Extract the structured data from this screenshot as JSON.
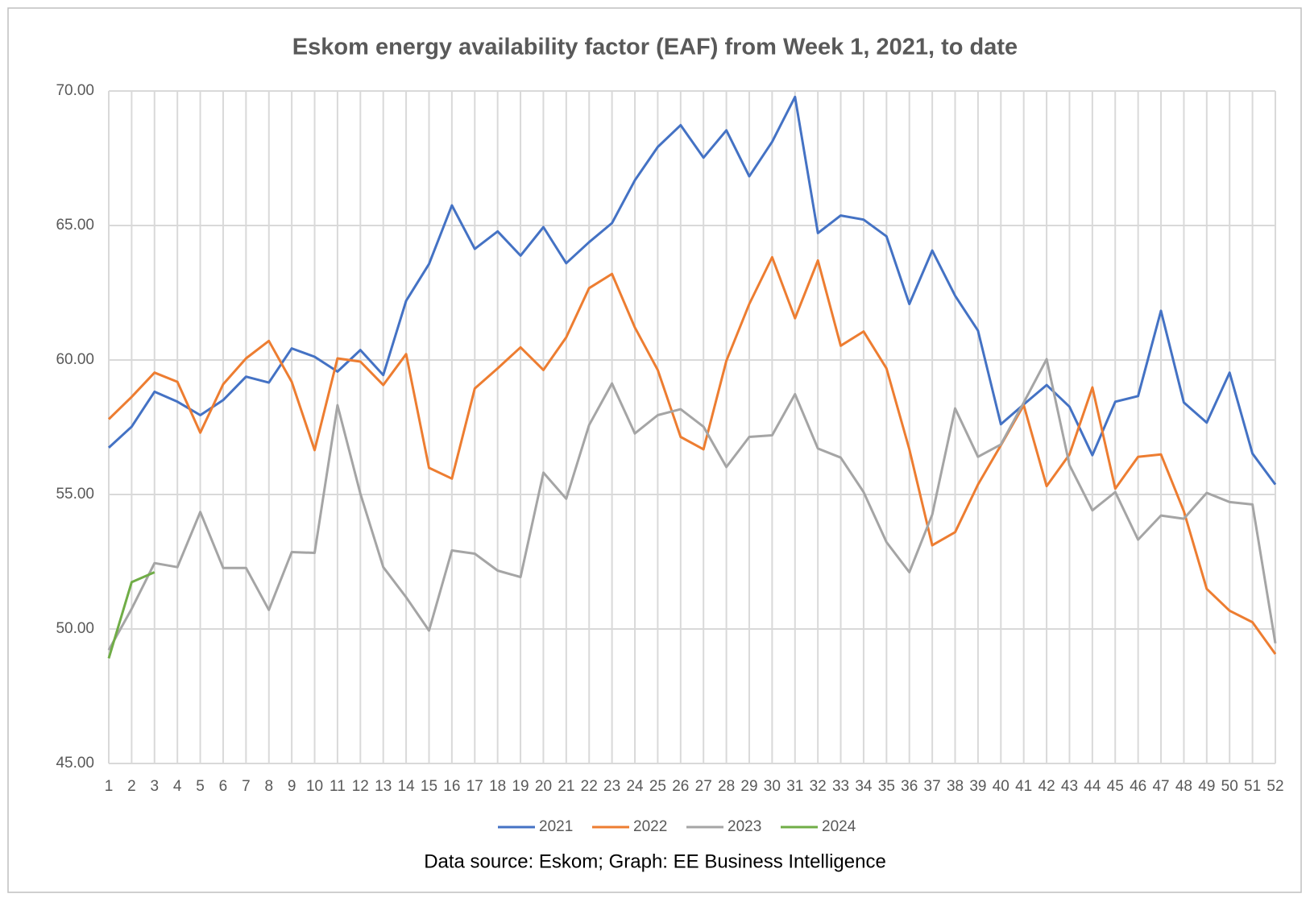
{
  "chart_data": {
    "type": "line",
    "title": "Eskom energy availability factor (EAF) from Week 1, 2021, to date",
    "annotation": "Data source: Eskom; Graph: EE Business Intelligence",
    "categories": [
      1,
      2,
      3,
      4,
      5,
      6,
      7,
      8,
      9,
      10,
      11,
      12,
      13,
      14,
      15,
      16,
      17,
      18,
      19,
      20,
      21,
      22,
      23,
      24,
      25,
      26,
      27,
      28,
      29,
      30,
      31,
      32,
      33,
      34,
      35,
      36,
      37,
      38,
      39,
      40,
      41,
      42,
      43,
      44,
      45,
      46,
      47,
      48,
      49,
      50,
      51,
      52
    ],
    "series": [
      {
        "name": "2021",
        "color": "#4472c4",
        "values": [
          56.74,
          57.52,
          58.82,
          58.45,
          57.95,
          58.51,
          59.38,
          59.16,
          60.43,
          60.12,
          59.57,
          60.37,
          59.44,
          62.2,
          63.57,
          65.75,
          64.13,
          64.78,
          63.88,
          64.94,
          63.6,
          64.38,
          65.09,
          66.68,
          67.92,
          68.73,
          67.52,
          68.54,
          66.83,
          68.11,
          69.78,
          64.72,
          65.37,
          65.22,
          64.6,
          62.08,
          64.07,
          62.39,
          61.09,
          57.61,
          58.35,
          59.07,
          58.26,
          56.46,
          58.45,
          58.66,
          61.83,
          58.42,
          57.67,
          59.53,
          56.52,
          55.37
        ]
      },
      {
        "name": "2022",
        "color": "#ed7d31",
        "values": [
          57.8,
          58.63,
          59.53,
          59.19,
          57.3,
          59.1,
          60.06,
          60.71,
          59.19,
          56.65,
          60.06,
          59.94,
          59.07,
          60.22,
          55.99,
          55.59,
          58.94,
          59.69,
          60.47,
          59.63,
          60.84,
          62.67,
          63.2,
          61.21,
          59.63,
          57.14,
          56.68,
          59.97,
          62.08,
          63.82,
          61.55,
          63.7,
          60.53,
          61.06,
          59.69,
          56.68,
          53.11,
          53.6,
          55.37,
          56.83,
          58.32,
          55.31,
          56.49,
          58.98,
          55.22,
          56.4,
          56.49,
          54.38,
          51.49,
          50.68,
          50.25,
          49.07
        ]
      },
      {
        "name": "2023",
        "color": "#a5a5a5",
        "values": [
          49.22,
          50.75,
          52.45,
          52.3,
          54.35,
          52.27,
          52.27,
          50.71,
          52.86,
          52.83,
          58.32,
          55.03,
          52.3,
          51.18,
          49.94,
          52.92,
          52.8,
          52.17,
          51.93,
          55.81,
          54.84,
          57.58,
          59.13,
          57.27,
          57.95,
          58.17,
          57.52,
          56.02,
          57.14,
          57.2,
          58.73,
          56.71,
          56.37,
          55.09,
          53.23,
          52.11,
          54.25,
          58.2,
          56.4,
          56.86,
          58.42,
          60.03,
          56.09,
          54.41,
          55.09,
          53.32,
          54.22,
          54.1,
          55.06,
          54.72,
          54.63,
          49.47
        ]
      },
      {
        "name": "2024",
        "color": "#70ad47",
        "values": [
          48.91,
          51.74,
          52.11,
          null,
          null,
          null,
          null,
          null,
          null,
          null,
          null,
          null,
          null,
          null,
          null,
          null,
          null,
          null,
          null,
          null,
          null,
          null,
          null,
          null,
          null,
          null,
          null,
          null,
          null,
          null,
          null,
          null,
          null,
          null,
          null,
          null,
          null,
          null,
          null,
          null,
          null,
          null,
          null,
          null,
          null,
          null,
          null,
          null,
          null,
          null,
          null,
          null
        ]
      }
    ],
    "ylim": [
      45,
      70
    ],
    "yticks": [
      {
        "value": 45,
        "label": "45.00"
      },
      {
        "value": 50,
        "label": "50.00"
      },
      {
        "value": 55,
        "label": "55.00"
      },
      {
        "value": 60,
        "label": "60.00"
      },
      {
        "value": 65,
        "label": "65.00"
      },
      {
        "value": 70,
        "label": "70.00"
      }
    ],
    "grid": true,
    "legend": "bottom"
  }
}
